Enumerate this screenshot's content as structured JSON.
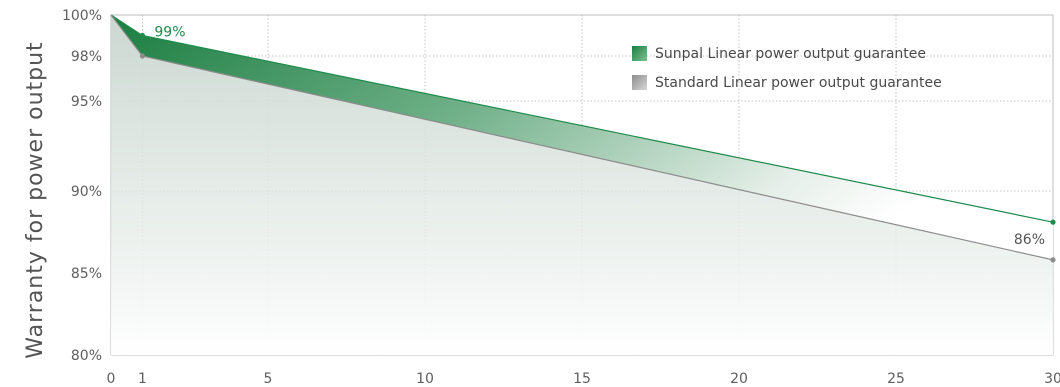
{
  "chart_data": {
    "type": "area",
    "ylabel": "Warranty for power output",
    "xlabel": "",
    "x_ticks": [
      0,
      1,
      5,
      10,
      15,
      20,
      25,
      30
    ],
    "y_ticks": [
      {
        "value": 100,
        "label": "100%"
      },
      {
        "value": 98,
        "label": "98%"
      },
      {
        "value": 95,
        "label": "95%"
      },
      {
        "value": 90,
        "label": "90%"
      },
      {
        "value": 85,
        "label": "85%"
      },
      {
        "value": 80,
        "label": "80%"
      }
    ],
    "xlim": [
      0,
      30
    ],
    "ylim": [
      80,
      100
    ],
    "grid": true,
    "legend_position": "top-right",
    "series": [
      {
        "name": "Sunpal Linear power output guarantee",
        "color": "#1f8a4c",
        "x": [
          0,
          1,
          30
        ],
        "y": [
          100,
          99,
          88.1
        ]
      },
      {
        "name": "Standard Linear power output guarantee",
        "color": "#8c8c8c",
        "x": [
          0,
          1,
          30
        ],
        "y": [
          100,
          98,
          85.8
        ]
      }
    ],
    "annotations": [
      {
        "text": "99%",
        "x": 1,
        "y": 99,
        "color": "#1f8a4c"
      },
      {
        "text": "86%",
        "x": 30,
        "y": 85.8,
        "color": "#555555"
      }
    ]
  }
}
